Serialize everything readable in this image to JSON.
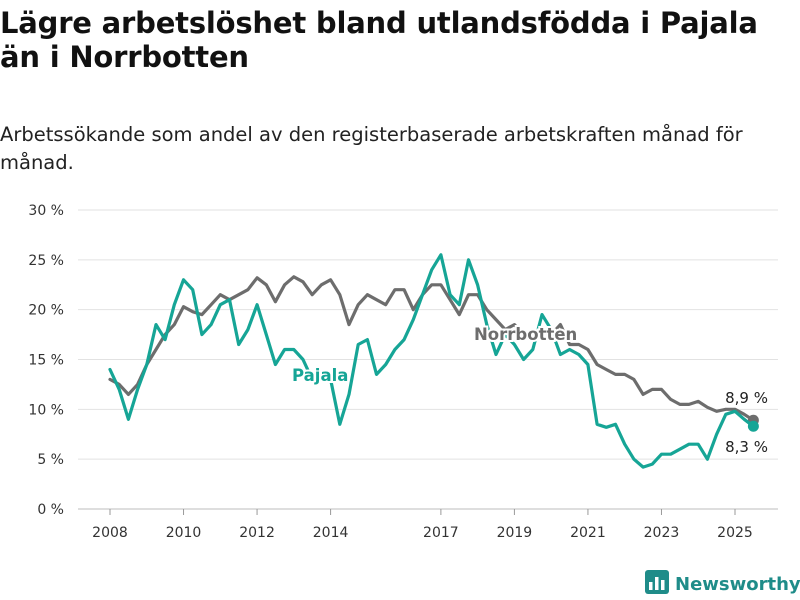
{
  "title": "Lägre arbetslöshet bland utlandsfödda i Pajala än i Norrbotten",
  "subtitle": "Arbetssökande som andel av den registerbaserade arbetskraften månad för månad.",
  "brand": {
    "name": "Newsworthy",
    "icon": "bar-chart-logo-icon"
  },
  "colors": {
    "pajala": "#16a596",
    "norrbotten": "#6d6d6d",
    "grid": "#e2e2e2",
    "brand": "#1f8c89"
  },
  "chart_data": {
    "type": "line",
    "title": "Lägre arbetslöshet bland utlandsfödda i Pajala än i Norrbotten",
    "subtitle": "Arbetssökande som andel av den registerbaserade arbetskraften månad för månad.",
    "x_ticks": [
      "2008",
      "2010",
      "2012",
      "2014",
      "2017",
      "2019",
      "2021",
      "2023",
      "2025"
    ],
    "y_ticks": [
      "0 %",
      "5 %",
      "10 %",
      "15 %",
      "20 %",
      "25 %",
      "30 %"
    ],
    "ylim": [
      0,
      30
    ],
    "grid": true,
    "x_axis": "date (year)",
    "end_labels": {
      "Norrbotten": "8,9 %",
      "Pajala": "8,3 %"
    },
    "series": [
      {
        "name": "Norrbotten",
        "color": "#6d6d6d",
        "points": [
          [
            2008.0,
            13.0
          ],
          [
            2008.25,
            12.5
          ],
          [
            2008.5,
            11.5
          ],
          [
            2008.75,
            12.5
          ],
          [
            2009.0,
            14.5
          ],
          [
            2009.25,
            16.0
          ],
          [
            2009.5,
            17.5
          ],
          [
            2009.75,
            18.5
          ],
          [
            2010.0,
            20.3
          ],
          [
            2010.25,
            19.8
          ],
          [
            2010.5,
            19.5
          ],
          [
            2010.75,
            20.5
          ],
          [
            2011.0,
            21.5
          ],
          [
            2011.25,
            21.0
          ],
          [
            2011.5,
            21.5
          ],
          [
            2011.75,
            22.0
          ],
          [
            2012.0,
            23.2
          ],
          [
            2012.25,
            22.5
          ],
          [
            2012.5,
            20.8
          ],
          [
            2012.75,
            22.5
          ],
          [
            2013.0,
            23.3
          ],
          [
            2013.25,
            22.8
          ],
          [
            2013.5,
            21.5
          ],
          [
            2013.75,
            22.5
          ],
          [
            2014.0,
            23.0
          ],
          [
            2014.25,
            21.5
          ],
          [
            2014.5,
            18.5
          ],
          [
            2014.75,
            20.5
          ],
          [
            2015.0,
            21.5
          ],
          [
            2015.25,
            21.0
          ],
          [
            2015.5,
            20.5
          ],
          [
            2015.75,
            22.0
          ],
          [
            2016.0,
            22.0
          ],
          [
            2016.25,
            20.0
          ],
          [
            2016.5,
            21.5
          ],
          [
            2016.75,
            22.5
          ],
          [
            2017.0,
            22.5
          ],
          [
            2017.25,
            21.0
          ],
          [
            2017.5,
            19.5
          ],
          [
            2017.75,
            21.5
          ],
          [
            2018.0,
            21.5
          ],
          [
            2018.25,
            20.0
          ],
          [
            2018.5,
            19.0
          ],
          [
            2018.75,
            18.0
          ],
          [
            2019.0,
            18.5
          ],
          [
            2019.25,
            17.5
          ],
          [
            2019.5,
            17.5
          ],
          [
            2019.75,
            18.0
          ],
          [
            2020.0,
            17.5
          ],
          [
            2020.25,
            18.5
          ],
          [
            2020.5,
            16.5
          ],
          [
            2020.75,
            16.5
          ],
          [
            2021.0,
            16.0
          ],
          [
            2021.25,
            14.5
          ],
          [
            2021.5,
            14.0
          ],
          [
            2021.75,
            13.5
          ],
          [
            2022.0,
            13.5
          ],
          [
            2022.25,
            13.0
          ],
          [
            2022.5,
            11.5
          ],
          [
            2022.75,
            12.0
          ],
          [
            2023.0,
            12.0
          ],
          [
            2023.25,
            11.0
          ],
          [
            2023.5,
            10.5
          ],
          [
            2023.75,
            10.5
          ],
          [
            2024.0,
            10.8
          ],
          [
            2024.25,
            10.2
          ],
          [
            2024.5,
            9.8
          ],
          [
            2024.75,
            10.0
          ],
          [
            2025.0,
            10.0
          ],
          [
            2025.25,
            9.5
          ],
          [
            2025.5,
            8.9
          ]
        ]
      },
      {
        "name": "Pajala",
        "color": "#16a596",
        "points": [
          [
            2008.0,
            14.0
          ],
          [
            2008.25,
            12.0
          ],
          [
            2008.5,
            9.0
          ],
          [
            2008.75,
            12.0
          ],
          [
            2009.0,
            14.5
          ],
          [
            2009.25,
            18.5
          ],
          [
            2009.5,
            17.0
          ],
          [
            2009.75,
            20.5
          ],
          [
            2010.0,
            23.0
          ],
          [
            2010.25,
            22.0
          ],
          [
            2010.5,
            17.5
          ],
          [
            2010.75,
            18.5
          ],
          [
            2011.0,
            20.5
          ],
          [
            2011.25,
            21.0
          ],
          [
            2011.5,
            16.5
          ],
          [
            2011.75,
            18.0
          ],
          [
            2012.0,
            20.5
          ],
          [
            2012.25,
            17.5
          ],
          [
            2012.5,
            14.5
          ],
          [
            2012.75,
            16.0
          ],
          [
            2013.0,
            16.0
          ],
          [
            2013.25,
            15.0
          ],
          [
            2013.5,
            13.0
          ],
          [
            2013.75,
            13.5
          ],
          [
            2014.0,
            13.0
          ],
          [
            2014.25,
            8.5
          ],
          [
            2014.5,
            11.5
          ],
          [
            2014.75,
            16.5
          ],
          [
            2015.0,
            17.0
          ],
          [
            2015.25,
            13.5
          ],
          [
            2015.5,
            14.5
          ],
          [
            2015.75,
            16.0
          ],
          [
            2016.0,
            17.0
          ],
          [
            2016.25,
            19.0
          ],
          [
            2016.5,
            21.5
          ],
          [
            2016.75,
            24.0
          ],
          [
            2017.0,
            25.5
          ],
          [
            2017.25,
            21.5
          ],
          [
            2017.5,
            20.5
          ],
          [
            2017.75,
            25.0
          ],
          [
            2018.0,
            22.5
          ],
          [
            2018.25,
            18.5
          ],
          [
            2018.5,
            15.5
          ],
          [
            2018.75,
            17.5
          ],
          [
            2019.0,
            16.5
          ],
          [
            2019.25,
            15.0
          ],
          [
            2019.5,
            16.0
          ],
          [
            2019.75,
            19.5
          ],
          [
            2020.0,
            18.0
          ],
          [
            2020.25,
            15.5
          ],
          [
            2020.5,
            16.0
          ],
          [
            2020.75,
            15.5
          ],
          [
            2021.0,
            14.5
          ],
          [
            2021.25,
            8.5
          ],
          [
            2021.5,
            8.2
          ],
          [
            2021.75,
            8.5
          ],
          [
            2022.0,
            6.5
          ],
          [
            2022.25,
            5.0
          ],
          [
            2022.5,
            4.2
          ],
          [
            2022.75,
            4.5
          ],
          [
            2023.0,
            5.5
          ],
          [
            2023.25,
            5.5
          ],
          [
            2023.5,
            6.0
          ],
          [
            2023.75,
            6.5
          ],
          [
            2024.0,
            6.5
          ],
          [
            2024.25,
            5.0
          ],
          [
            2024.5,
            7.5
          ],
          [
            2024.75,
            9.5
          ],
          [
            2025.0,
            9.8
          ],
          [
            2025.25,
            9.0
          ],
          [
            2025.5,
            8.3
          ]
        ]
      }
    ]
  }
}
